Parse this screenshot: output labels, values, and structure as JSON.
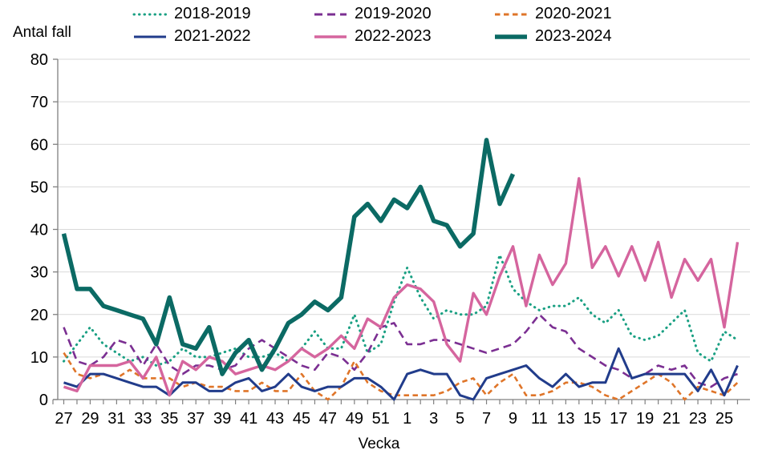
{
  "chart_data": {
    "type": "line",
    "title": "",
    "ylabel": "Antal fall",
    "xlabel": "Vecka",
    "ylim": [
      0,
      80
    ],
    "y_ticks": [
      0,
      10,
      20,
      30,
      40,
      50,
      60,
      70,
      80
    ],
    "grid": "horizontal",
    "legend_position": "top",
    "x_weeks": [
      27,
      28,
      29,
      30,
      31,
      32,
      33,
      34,
      35,
      36,
      37,
      38,
      39,
      40,
      41,
      42,
      43,
      44,
      45,
      46,
      47,
      48,
      49,
      50,
      51,
      52,
      1,
      2,
      3,
      4,
      5,
      6,
      7,
      8,
      9,
      10,
      11,
      12,
      13,
      14,
      15,
      16,
      17,
      18,
      19,
      20,
      21,
      22,
      23,
      24,
      25,
      26
    ],
    "x_tick_label_every": 2,
    "series": [
      {
        "name": "2018-2019",
        "color": "#1aa083",
        "style": "dotted",
        "width": 3,
        "values": [
          9,
          13,
          17,
          13,
          11,
          9,
          10,
          8,
          9,
          12,
          10,
          10,
          11,
          12,
          10,
          10,
          11,
          9,
          12,
          16,
          12,
          12,
          20,
          11,
          13,
          23,
          31,
          24,
          19,
          21,
          20,
          20,
          22,
          34,
          26,
          23,
          21,
          22,
          22,
          24,
          20,
          18,
          21,
          15,
          14,
          15,
          18,
          21,
          11,
          9,
          16,
          14
        ]
      },
      {
        "name": "2019-2020",
        "color": "#7b2f92",
        "style": "dashed",
        "width": 2.6,
        "values": [
          17,
          9,
          8,
          10,
          14,
          13,
          8,
          13,
          8,
          6,
          8,
          8,
          7,
          8,
          12,
          14,
          12,
          10,
          8,
          7,
          11,
          10,
          7,
          11,
          17,
          18,
          13,
          13,
          14,
          14,
          13,
          12,
          11,
          12,
          13,
          16,
          20,
          17,
          16,
          12,
          10,
          8,
          7,
          5,
          6,
          8,
          7,
          8,
          4,
          3,
          5,
          6
        ]
      },
      {
        "name": "2020-2021",
        "color": "#df7529",
        "style": "shortdash",
        "width": 2.6,
        "values": [
          11,
          6,
          5,
          6,
          5,
          7,
          5,
          5,
          5,
          3,
          4,
          3,
          3,
          2,
          2,
          4,
          2,
          2,
          6,
          2,
          0,
          3,
          9,
          4,
          2,
          1,
          1,
          1,
          1,
          2,
          4,
          5,
          1,
          4,
          6,
          1,
          1,
          2,
          4,
          4,
          3,
          1,
          0,
          2,
          4,
          6,
          4,
          0,
          3,
          2,
          1,
          4
        ]
      },
      {
        "name": "2021-2022",
        "color": "#213c8b",
        "style": "solid",
        "width": 3,
        "values": [
          4,
          3,
          6,
          6,
          5,
          4,
          3,
          3,
          1,
          4,
          4,
          2,
          2,
          4,
          5,
          2,
          3,
          6,
          3,
          2,
          3,
          3,
          5,
          5,
          3,
          0,
          6,
          7,
          6,
          6,
          1,
          0,
          5,
          6,
          7,
          8,
          5,
          3,
          6,
          3,
          4,
          4,
          12,
          5,
          6,
          6,
          6,
          6,
          2,
          7,
          1,
          8
        ]
      },
      {
        "name": "2022-2023",
        "color": "#d5659e",
        "style": "solid",
        "width": 3.4,
        "values": [
          3,
          2,
          8,
          8,
          8,
          9,
          5,
          10,
          1,
          9,
          7,
          10,
          9,
          6,
          7,
          8,
          7,
          9,
          12,
          10,
          12,
          15,
          12,
          19,
          17,
          24,
          27,
          26,
          23,
          13,
          9,
          25,
          20,
          29,
          36,
          22,
          34,
          27,
          32,
          52,
          31,
          36,
          29,
          36,
          28,
          37,
          24,
          33,
          28,
          33,
          17,
          37
        ]
      },
      {
        "name": "2023-2024",
        "color": "#0b6a64",
        "style": "solid",
        "width": 5.5,
        "values": [
          39,
          26,
          26,
          22,
          21,
          20,
          19,
          13,
          24,
          13,
          12,
          17,
          6,
          11,
          14,
          7,
          12,
          18,
          20,
          23,
          21,
          24,
          43,
          46,
          42,
          47,
          45,
          50,
          42,
          41,
          36,
          39,
          61,
          46,
          53,
          null,
          null,
          null,
          null,
          null,
          null,
          null,
          null,
          null,
          null,
          null,
          null,
          null,
          null,
          null,
          null,
          null
        ]
      }
    ],
    "colors": {
      "grid": "#d9d9d9",
      "axis": "#808080",
      "text": "#000000",
      "background": "#ffffff"
    }
  }
}
